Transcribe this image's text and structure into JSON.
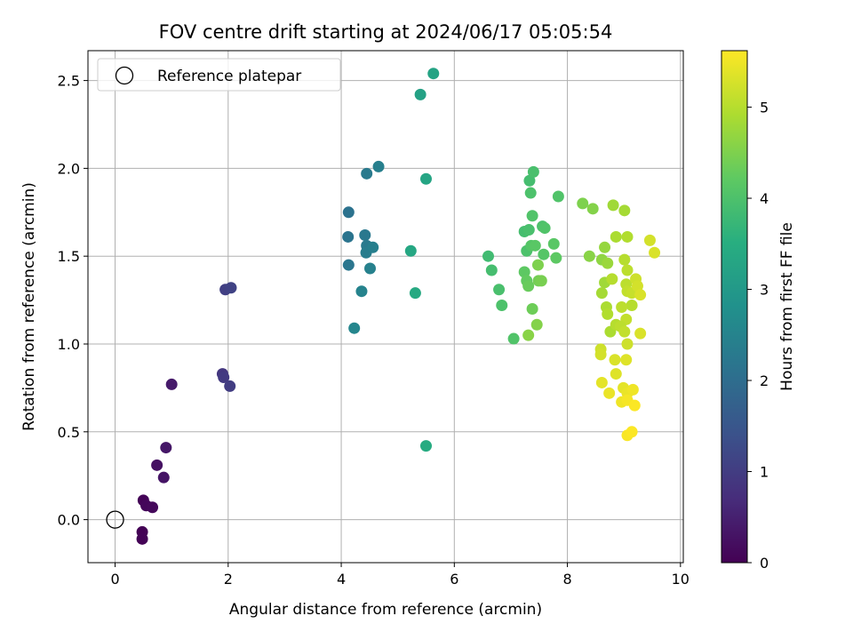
{
  "chart_data": {
    "type": "scatter",
    "title": "FOV centre drift starting at 2024/06/17 05:05:54",
    "xlabel": "Angular distance from reference (arcmin)",
    "ylabel": "Rotation from reference (arcmin)",
    "xlim": [
      -0.48,
      10.05
    ],
    "ylim": [
      -0.245,
      2.67
    ],
    "xticks": [
      0,
      2,
      4,
      6,
      8,
      10
    ],
    "yticks": [
      0.0,
      0.5,
      1.0,
      1.5,
      2.0,
      2.5
    ],
    "xtick_labels": [
      "0",
      "2",
      "4",
      "6",
      "8",
      "10"
    ],
    "ytick_labels": [
      "0.0",
      "0.5",
      "1.0",
      "1.5",
      "2.0",
      "2.5"
    ],
    "grid": true,
    "legend": {
      "position": "top-left",
      "label": "Reference platepar"
    },
    "reference_point": {
      "x": 0,
      "y": 0
    },
    "colorbar": {
      "label": "Hours from first FF file",
      "colormap": "viridis",
      "range": [
        0,
        5.62
      ],
      "ticks": [
        0,
        1,
        2,
        3,
        4,
        5
      ],
      "tick_labels": [
        "0",
        "1",
        "2",
        "3",
        "4",
        "5"
      ]
    },
    "points": [
      {
        "x": 0.5,
        "y": 0.11,
        "c": 0.05
      },
      {
        "x": 0.55,
        "y": 0.08,
        "c": 0.1
      },
      {
        "x": 0.66,
        "y": 0.07,
        "c": 0.12
      },
      {
        "x": 0.48,
        "y": -0.07,
        "c": 0.02
      },
      {
        "x": 0.48,
        "y": -0.11,
        "c": 0.03
      },
      {
        "x": 0.74,
        "y": 0.31,
        "c": 0.25
      },
      {
        "x": 0.86,
        "y": 0.24,
        "c": 0.3
      },
      {
        "x": 0.9,
        "y": 0.41,
        "c": 0.35
      },
      {
        "x": 1.0,
        "y": 0.77,
        "c": 0.4
      },
      {
        "x": 1.9,
        "y": 0.83,
        "c": 0.9
      },
      {
        "x": 1.92,
        "y": 0.81,
        "c": 0.95
      },
      {
        "x": 2.03,
        "y": 0.76,
        "c": 1.0
      },
      {
        "x": 1.95,
        "y": 1.31,
        "c": 1.05
      },
      {
        "x": 2.05,
        "y": 1.32,
        "c": 1.1
      },
      {
        "x": 4.13,
        "y": 1.75,
        "c": 2.1
      },
      {
        "x": 4.12,
        "y": 1.61,
        "c": 2.15
      },
      {
        "x": 4.13,
        "y": 1.45,
        "c": 2.2
      },
      {
        "x": 4.42,
        "y": 1.62,
        "c": 2.25
      },
      {
        "x": 4.45,
        "y": 1.56,
        "c": 2.3
      },
      {
        "x": 4.44,
        "y": 1.52,
        "c": 2.35
      },
      {
        "x": 4.56,
        "y": 1.55,
        "c": 2.4
      },
      {
        "x": 4.51,
        "y": 1.43,
        "c": 2.45
      },
      {
        "x": 4.36,
        "y": 1.3,
        "c": 2.5
      },
      {
        "x": 4.23,
        "y": 1.09,
        "c": 2.55
      },
      {
        "x": 4.45,
        "y": 1.97,
        "c": 2.3
      },
      {
        "x": 4.66,
        "y": 2.01,
        "c": 2.4
      },
      {
        "x": 5.4,
        "y": 2.42,
        "c": 3.2
      },
      {
        "x": 5.63,
        "y": 2.54,
        "c": 3.25
      },
      {
        "x": 5.5,
        "y": 1.94,
        "c": 3.3
      },
      {
        "x": 5.23,
        "y": 1.53,
        "c": 3.35
      },
      {
        "x": 5.31,
        "y": 1.29,
        "c": 3.4
      },
      {
        "x": 5.5,
        "y": 0.42,
        "c": 3.45
      },
      {
        "x": 6.6,
        "y": 1.5,
        "c": 3.85
      },
      {
        "x": 6.66,
        "y": 1.42,
        "c": 3.9
      },
      {
        "x": 6.79,
        "y": 1.31,
        "c": 3.95
      },
      {
        "x": 6.84,
        "y": 1.22,
        "c": 4.0
      },
      {
        "x": 7.05,
        "y": 1.03,
        "c": 4.05
      },
      {
        "x": 7.24,
        "y": 1.64,
        "c": 3.9
      },
      {
        "x": 7.32,
        "y": 1.65,
        "c": 3.95
      },
      {
        "x": 7.28,
        "y": 1.53,
        "c": 4.0
      },
      {
        "x": 7.38,
        "y": 1.73,
        "c": 4.05
      },
      {
        "x": 7.36,
        "y": 1.56,
        "c": 4.1
      },
      {
        "x": 7.43,
        "y": 1.56,
        "c": 4.15
      },
      {
        "x": 7.24,
        "y": 1.41,
        "c": 4.2
      },
      {
        "x": 7.28,
        "y": 1.36,
        "c": 4.25
      },
      {
        "x": 7.31,
        "y": 1.33,
        "c": 4.3
      },
      {
        "x": 7.38,
        "y": 1.2,
        "c": 4.35
      },
      {
        "x": 7.49,
        "y": 1.36,
        "c": 4.4
      },
      {
        "x": 7.54,
        "y": 1.36,
        "c": 4.45
      },
      {
        "x": 7.48,
        "y": 1.45,
        "c": 4.5
      },
      {
        "x": 7.46,
        "y": 1.11,
        "c": 4.55
      },
      {
        "x": 7.31,
        "y": 1.05,
        "c": 4.6
      },
      {
        "x": 7.56,
        "y": 1.67,
        "c": 4.0
      },
      {
        "x": 7.6,
        "y": 1.66,
        "c": 4.05
      },
      {
        "x": 7.58,
        "y": 1.51,
        "c": 4.1
      },
      {
        "x": 7.76,
        "y": 1.57,
        "c": 4.15
      },
      {
        "x": 7.8,
        "y": 1.49,
        "c": 4.2
      },
      {
        "x": 7.33,
        "y": 1.93,
        "c": 3.9
      },
      {
        "x": 7.4,
        "y": 1.98,
        "c": 3.95
      },
      {
        "x": 7.35,
        "y": 1.86,
        "c": 4.0
      },
      {
        "x": 7.84,
        "y": 1.84,
        "c": 4.05
      },
      {
        "x": 8.27,
        "y": 1.8,
        "c": 4.5
      },
      {
        "x": 8.45,
        "y": 1.77,
        "c": 4.55
      },
      {
        "x": 8.39,
        "y": 1.5,
        "c": 4.6
      },
      {
        "x": 8.61,
        "y": 1.48,
        "c": 4.65
      },
      {
        "x": 8.66,
        "y": 1.55,
        "c": 4.7
      },
      {
        "x": 8.71,
        "y": 1.46,
        "c": 4.75
      },
      {
        "x": 8.81,
        "y": 1.79,
        "c": 4.8
      },
      {
        "x": 9.01,
        "y": 1.76,
        "c": 4.85
      },
      {
        "x": 8.86,
        "y": 1.61,
        "c": 4.9
      },
      {
        "x": 9.06,
        "y": 1.61,
        "c": 4.95
      },
      {
        "x": 9.01,
        "y": 1.48,
        "c": 5.0
      },
      {
        "x": 9.06,
        "y": 1.42,
        "c": 5.05
      },
      {
        "x": 8.66,
        "y": 1.35,
        "c": 4.8
      },
      {
        "x": 8.61,
        "y": 1.29,
        "c": 4.85
      },
      {
        "x": 8.69,
        "y": 1.21,
        "c": 4.9
      },
      {
        "x": 8.71,
        "y": 1.17,
        "c": 4.95
      },
      {
        "x": 8.79,
        "y": 1.37,
        "c": 5.0
      },
      {
        "x": 9.04,
        "y": 1.34,
        "c": 5.05
      },
      {
        "x": 9.06,
        "y": 1.3,
        "c": 5.1
      },
      {
        "x": 9.14,
        "y": 1.29,
        "c": 5.15
      },
      {
        "x": 9.21,
        "y": 1.37,
        "c": 5.2
      },
      {
        "x": 9.24,
        "y": 1.33,
        "c": 5.25
      },
      {
        "x": 9.29,
        "y": 1.28,
        "c": 5.3
      },
      {
        "x": 9.14,
        "y": 1.22,
        "c": 5.0
      },
      {
        "x": 8.96,
        "y": 1.21,
        "c": 5.05
      },
      {
        "x": 9.04,
        "y": 1.14,
        "c": 5.1
      },
      {
        "x": 8.76,
        "y": 1.07,
        "c": 4.9
      },
      {
        "x": 8.86,
        "y": 1.11,
        "c": 5.0
      },
      {
        "x": 8.94,
        "y": 1.1,
        "c": 5.05
      },
      {
        "x": 9.01,
        "y": 1.07,
        "c": 5.1
      },
      {
        "x": 9.06,
        "y": 1.0,
        "c": 5.2
      },
      {
        "x": 9.29,
        "y": 1.06,
        "c": 5.3
      },
      {
        "x": 9.46,
        "y": 1.59,
        "c": 5.25
      },
      {
        "x": 9.54,
        "y": 1.52,
        "c": 5.3
      },
      {
        "x": 8.59,
        "y": 0.97,
        "c": 5.2
      },
      {
        "x": 8.59,
        "y": 0.94,
        "c": 5.25
      },
      {
        "x": 8.84,
        "y": 0.91,
        "c": 5.3
      },
      {
        "x": 9.04,
        "y": 0.91,
        "c": 5.35
      },
      {
        "x": 8.86,
        "y": 0.83,
        "c": 5.35
      },
      {
        "x": 8.61,
        "y": 0.78,
        "c": 5.4
      },
      {
        "x": 8.74,
        "y": 0.72,
        "c": 5.45
      },
      {
        "x": 8.99,
        "y": 0.75,
        "c": 5.4
      },
      {
        "x": 9.06,
        "y": 0.72,
        "c": 5.45
      },
      {
        "x": 9.16,
        "y": 0.74,
        "c": 5.5
      },
      {
        "x": 8.96,
        "y": 0.67,
        "c": 5.5
      },
      {
        "x": 9.06,
        "y": 0.68,
        "c": 5.55
      },
      {
        "x": 9.19,
        "y": 0.65,
        "c": 5.6
      },
      {
        "x": 9.06,
        "y": 0.48,
        "c": 5.58
      },
      {
        "x": 9.14,
        "y": 0.5,
        "c": 5.6
      }
    ]
  }
}
